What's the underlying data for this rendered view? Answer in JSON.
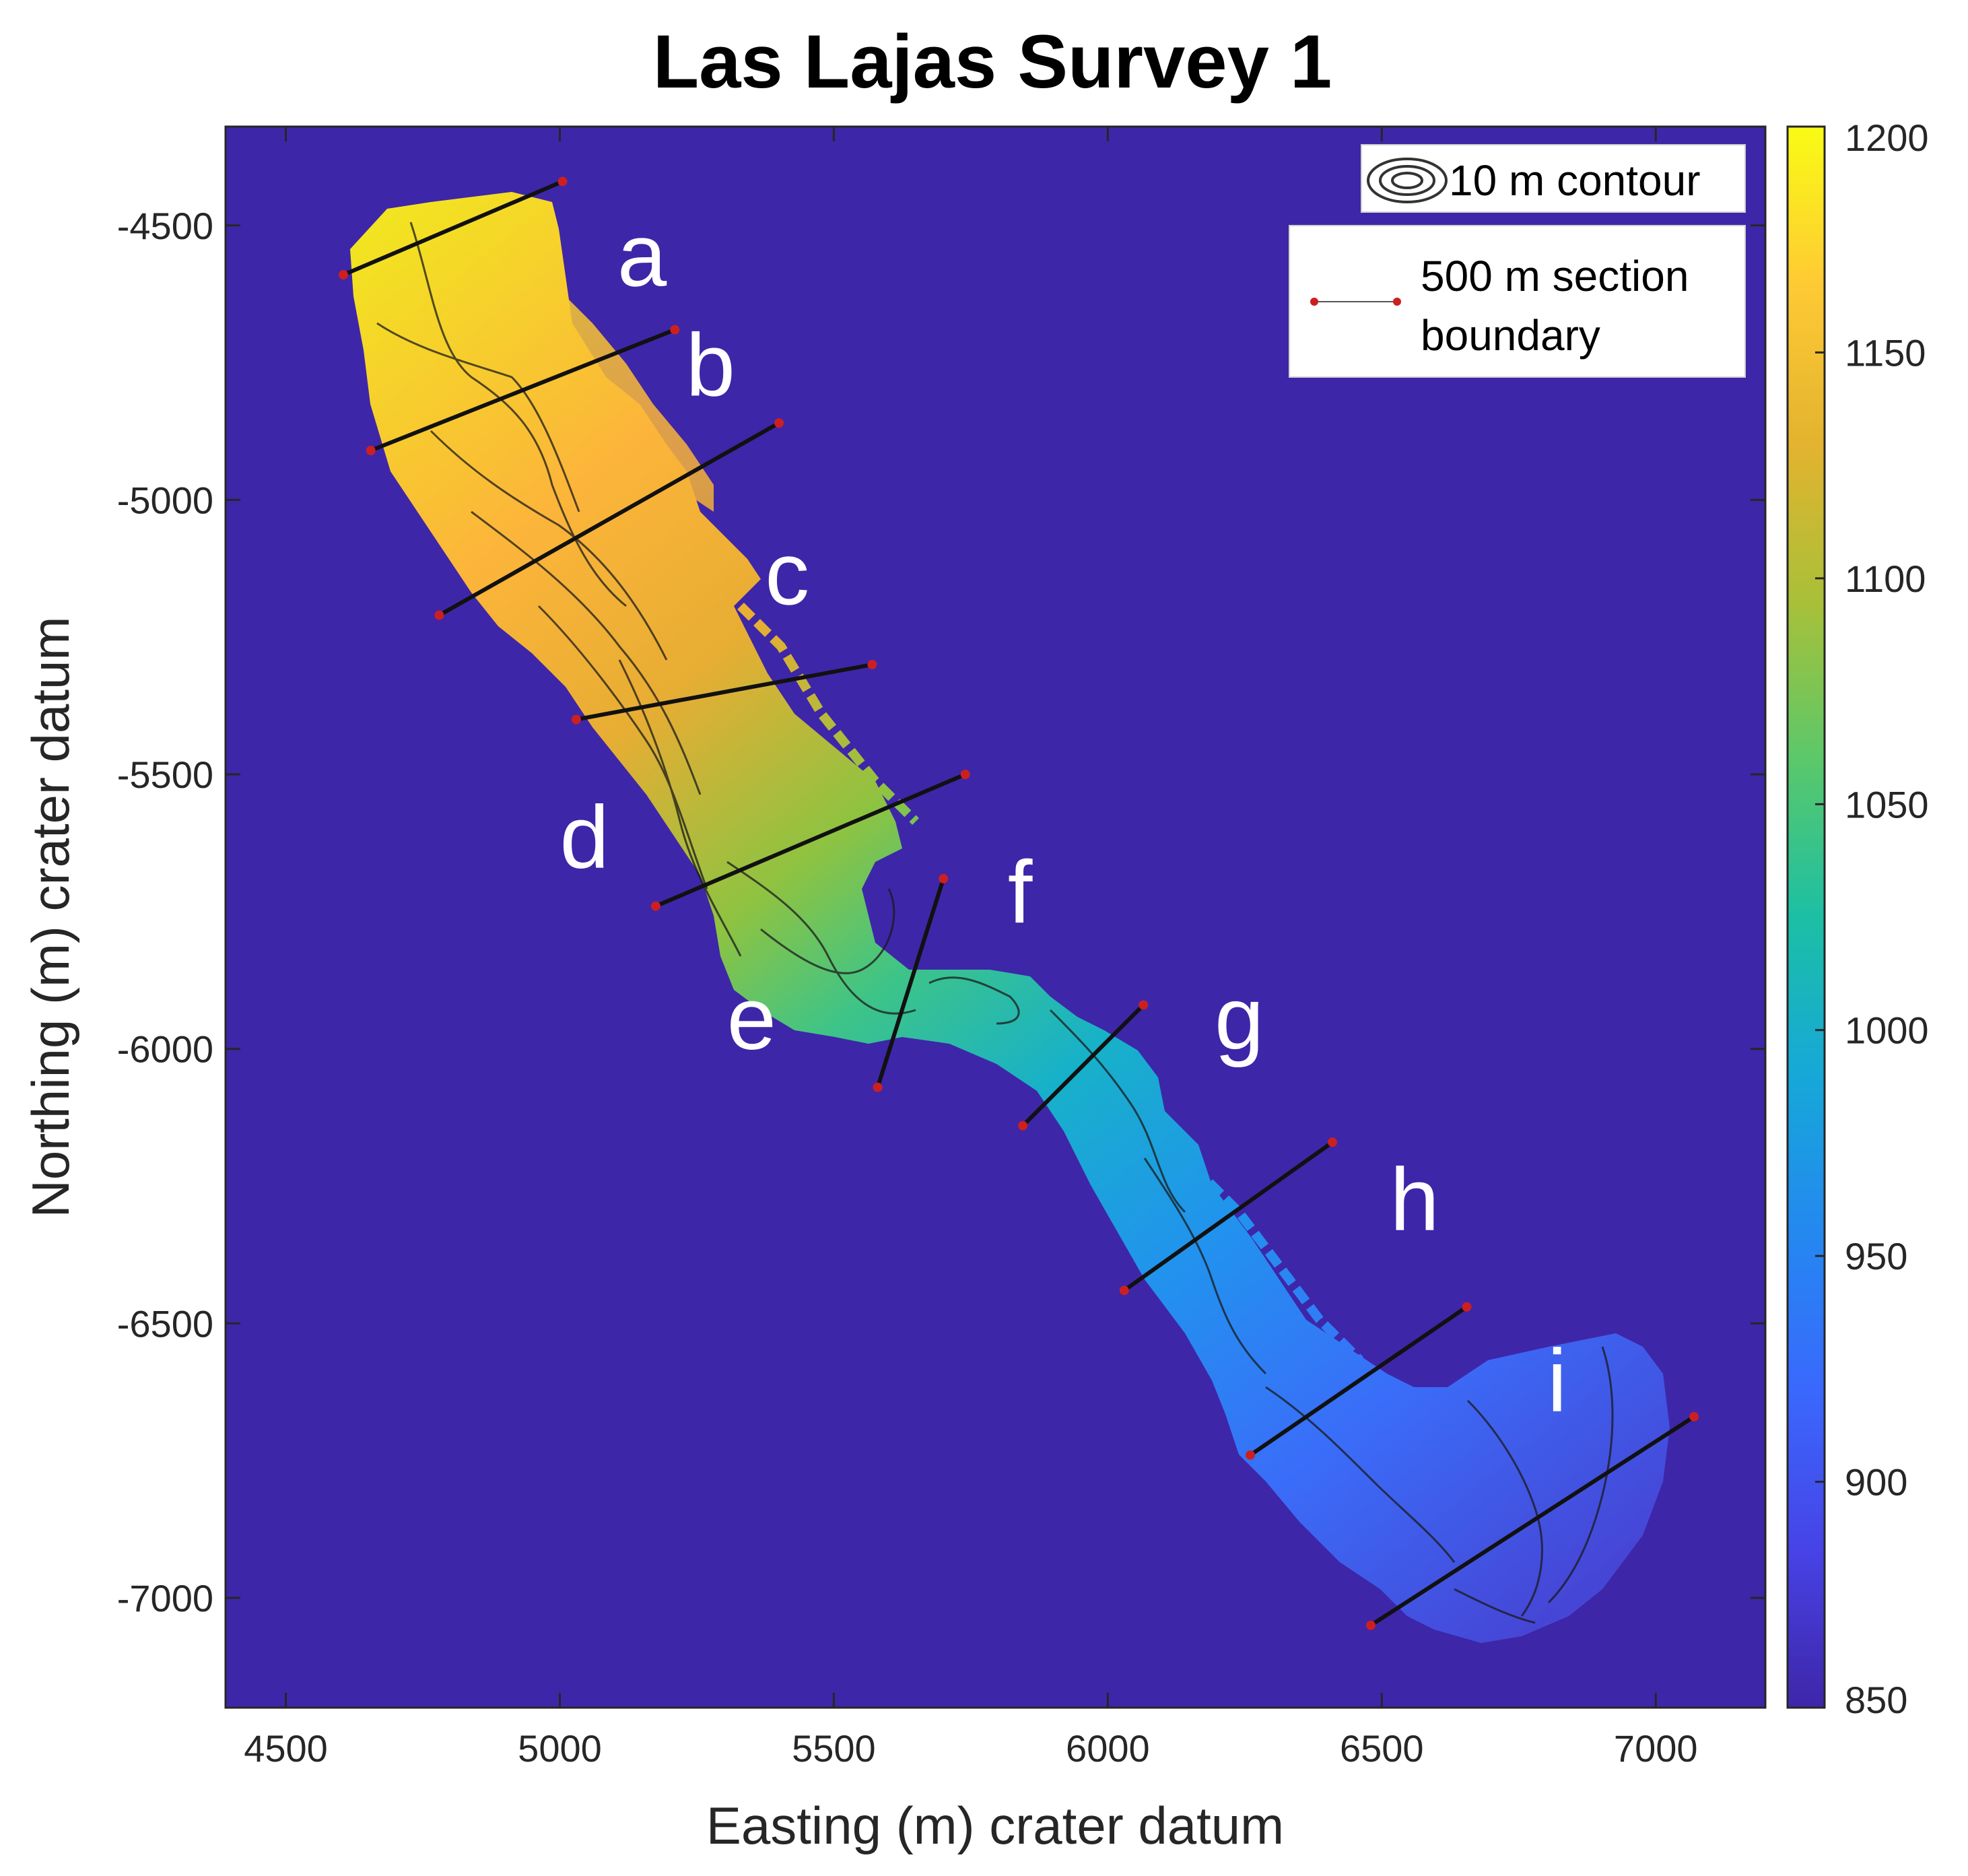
{
  "title": "Las Lajas Survey 1",
  "xlabel": "Easting (m) crater datum",
  "ylabel": "Northing (m) crater datum",
  "chart_data": {
    "type": "heatmap",
    "title": "Las Lajas Survey 1",
    "xlabel": "Easting (m) crater datum",
    "ylabel": "Northing (m) crater datum",
    "xlim": [
      4390,
      7200
    ],
    "ylim": [
      -7200,
      -4320
    ],
    "x_ticks": [
      4500,
      5000,
      5500,
      6000,
      6500,
      7000
    ],
    "y_ticks": [
      -4500,
      -5000,
      -5500,
      -6000,
      -6500,
      -7000
    ],
    "colorbar": {
      "min": 850,
      "max": 1200,
      "ticks": [
        850,
        900,
        950,
        1000,
        1050,
        1100,
        1150,
        1200
      ],
      "colormap": "parula"
    },
    "background_color": "#3e26a8",
    "sections": [
      {
        "label": "a",
        "label_pos": [
          5150,
          -4610
        ],
        "from": [
          4605,
          -4590
        ],
        "to": [
          5005,
          -4420
        ]
      },
      {
        "label": "b",
        "label_pos": [
          5275,
          -4810
        ],
        "from": [
          4655,
          -4910
        ],
        "to": [
          5210,
          -4690
        ]
      },
      {
        "label": "c",
        "label_pos": [
          5415,
          -5190
        ],
        "from": [
          4780,
          -5210
        ],
        "to": [
          5400,
          -4860
        ]
      },
      {
        "label": "d",
        "label_pos": [
          5045,
          -5670
        ],
        "from": [
          5030,
          -5400
        ],
        "to": [
          5570,
          -5300
        ]
      },
      {
        "label": "e",
        "label_pos": [
          5350,
          -6000
        ],
        "from": [
          5175,
          -5740
        ],
        "to": [
          5740,
          -5500
        ]
      },
      {
        "label": "f",
        "label_pos": [
          5840,
          -5770
        ],
        "from": [
          5580,
          -6070
        ],
        "to": [
          5700,
          -5690
        ]
      },
      {
        "label": "g",
        "label_pos": [
          6240,
          -6000
        ],
        "from": [
          5845,
          -6140
        ],
        "to": [
          6065,
          -5920
        ]
      },
      {
        "label": "h",
        "label_pos": [
          6560,
          -6330
        ],
        "from": [
          6030,
          -6440
        ],
        "to": [
          6410,
          -6170
        ]
      },
      {
        "label": "i",
        "label_pos": [
          6820,
          -6660
        ],
        "from": [
          6260,
          -6740
        ],
        "to": [
          6655,
          -6470
        ]
      }
    ],
    "extra_boundary": {
      "from": [
        6480,
        -7050
      ],
      "to": [
        7070,
        -6670
      ]
    },
    "legend": {
      "placement": "top-right",
      "entries": [
        "10 m contour",
        "500 m section boundary"
      ]
    }
  },
  "legend": {
    "contour_label": "10 m contour",
    "section_label_line1": "500 m section",
    "section_label_line2": "boundary"
  },
  "colors": {
    "background": "#3e26a8",
    "line": "#111111",
    "endpoint": "#cc2020",
    "contour": "#1a1a1a"
  }
}
